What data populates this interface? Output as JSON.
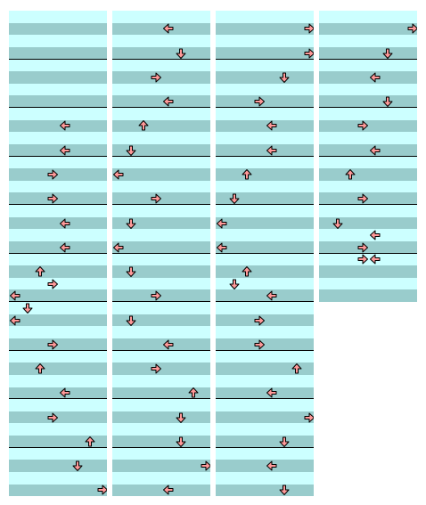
{
  "colors": {
    "light_row": "#ccffff",
    "dark_row": "#99cccc",
    "bar_line": "#000000",
    "note_fill": "#ff9999",
    "note_stroke": "#000000"
  },
  "chart_columns": [
    {
      "rows": 40,
      "notes": [
        {
          "row": 9,
          "lane": 4,
          "dir": "left"
        },
        {
          "row": 11,
          "lane": 4,
          "dir": "left"
        },
        {
          "row": 13,
          "lane": 3,
          "dir": "right"
        },
        {
          "row": 15,
          "lane": 3,
          "dir": "right"
        },
        {
          "row": 17,
          "lane": 4,
          "dir": "left"
        },
        {
          "row": 19,
          "lane": 4,
          "dir": "left"
        },
        {
          "row": 21,
          "lane": 2,
          "dir": "up"
        },
        {
          "row": 22,
          "lane": 3,
          "dir": "right"
        },
        {
          "row": 23,
          "lane": 0,
          "dir": "left"
        },
        {
          "row": 24,
          "lane": 1,
          "dir": "down"
        },
        {
          "row": 25,
          "lane": 0,
          "dir": "left"
        },
        {
          "row": 27,
          "lane": 3,
          "dir": "right"
        },
        {
          "row": 29,
          "lane": 2,
          "dir": "up"
        },
        {
          "row": 31,
          "lane": 4,
          "dir": "left"
        },
        {
          "row": 33,
          "lane": 3,
          "dir": "right"
        },
        {
          "row": 35,
          "lane": 6,
          "dir": "up"
        },
        {
          "row": 37,
          "lane": 5,
          "dir": "down"
        },
        {
          "row": 39,
          "lane": 7,
          "dir": "right"
        }
      ]
    },
    {
      "rows": 40,
      "notes": [
        {
          "row": 1,
          "lane": 4,
          "dir": "left"
        },
        {
          "row": 3,
          "lane": 5,
          "dir": "down"
        },
        {
          "row": 5,
          "lane": 3,
          "dir": "right"
        },
        {
          "row": 7,
          "lane": 4,
          "dir": "left"
        },
        {
          "row": 9,
          "lane": 2,
          "dir": "up"
        },
        {
          "row": 11,
          "lane": 1,
          "dir": "down"
        },
        {
          "row": 13,
          "lane": 0,
          "dir": "left"
        },
        {
          "row": 15,
          "lane": 3,
          "dir": "right"
        },
        {
          "row": 17,
          "lane": 1,
          "dir": "down"
        },
        {
          "row": 19,
          "lane": 0,
          "dir": "left"
        },
        {
          "row": 21,
          "lane": 1,
          "dir": "down"
        },
        {
          "row": 23,
          "lane": 3,
          "dir": "right"
        },
        {
          "row": 25,
          "lane": 1,
          "dir": "down"
        },
        {
          "row": 27,
          "lane": 4,
          "dir": "left"
        },
        {
          "row": 29,
          "lane": 3,
          "dir": "right"
        },
        {
          "row": 31,
          "lane": 6,
          "dir": "up"
        },
        {
          "row": 33,
          "lane": 5,
          "dir": "down"
        },
        {
          "row": 35,
          "lane": 5,
          "dir": "down"
        },
        {
          "row": 37,
          "lane": 7,
          "dir": "right"
        },
        {
          "row": 39,
          "lane": 4,
          "dir": "left"
        }
      ]
    },
    {
      "rows": 40,
      "notes": [
        {
          "row": 1,
          "lane": 7,
          "dir": "right"
        },
        {
          "row": 3,
          "lane": 7,
          "dir": "right"
        },
        {
          "row": 5,
          "lane": 5,
          "dir": "down"
        },
        {
          "row": 7,
          "lane": 3,
          "dir": "right"
        },
        {
          "row": 9,
          "lane": 4,
          "dir": "left"
        },
        {
          "row": 11,
          "lane": 4,
          "dir": "left"
        },
        {
          "row": 13,
          "lane": 2,
          "dir": "up"
        },
        {
          "row": 15,
          "lane": 1,
          "dir": "down"
        },
        {
          "row": 17,
          "lane": 0,
          "dir": "left"
        },
        {
          "row": 19,
          "lane": 0,
          "dir": "left"
        },
        {
          "row": 21,
          "lane": 2,
          "dir": "up"
        },
        {
          "row": 22,
          "lane": 1,
          "dir": "down"
        },
        {
          "row": 23,
          "lane": 4,
          "dir": "left"
        },
        {
          "row": 25,
          "lane": 3,
          "dir": "right"
        },
        {
          "row": 27,
          "lane": 3,
          "dir": "right"
        },
        {
          "row": 29,
          "lane": 6,
          "dir": "up"
        },
        {
          "row": 31,
          "lane": 4,
          "dir": "left"
        },
        {
          "row": 33,
          "lane": 7,
          "dir": "right"
        },
        {
          "row": 35,
          "lane": 5,
          "dir": "down"
        },
        {
          "row": 37,
          "lane": 4,
          "dir": "left"
        },
        {
          "row": 39,
          "lane": 5,
          "dir": "down"
        }
      ]
    },
    {
      "rows": 24,
      "notes": [
        {
          "row": 1,
          "lane": 7,
          "dir": "right"
        },
        {
          "row": 3,
          "lane": 5,
          "dir": "down"
        },
        {
          "row": 5,
          "lane": 4,
          "dir": "left"
        },
        {
          "row": 7,
          "lane": 5,
          "dir": "down"
        },
        {
          "row": 9,
          "lane": 3,
          "dir": "right"
        },
        {
          "row": 11,
          "lane": 4,
          "dir": "left"
        },
        {
          "row": 13,
          "lane": 2,
          "dir": "up"
        },
        {
          "row": 15,
          "lane": 3,
          "dir": "right"
        },
        {
          "row": 17,
          "lane": 1,
          "dir": "down"
        },
        {
          "row": 18,
          "lane": 4,
          "dir": "left"
        },
        {
          "row": 19,
          "lane": 3,
          "dir": "right"
        },
        {
          "row": 20,
          "lane": 3,
          "dir": "right"
        },
        {
          "row": 20,
          "lane": 4,
          "dir": "left"
        }
      ]
    }
  ]
}
